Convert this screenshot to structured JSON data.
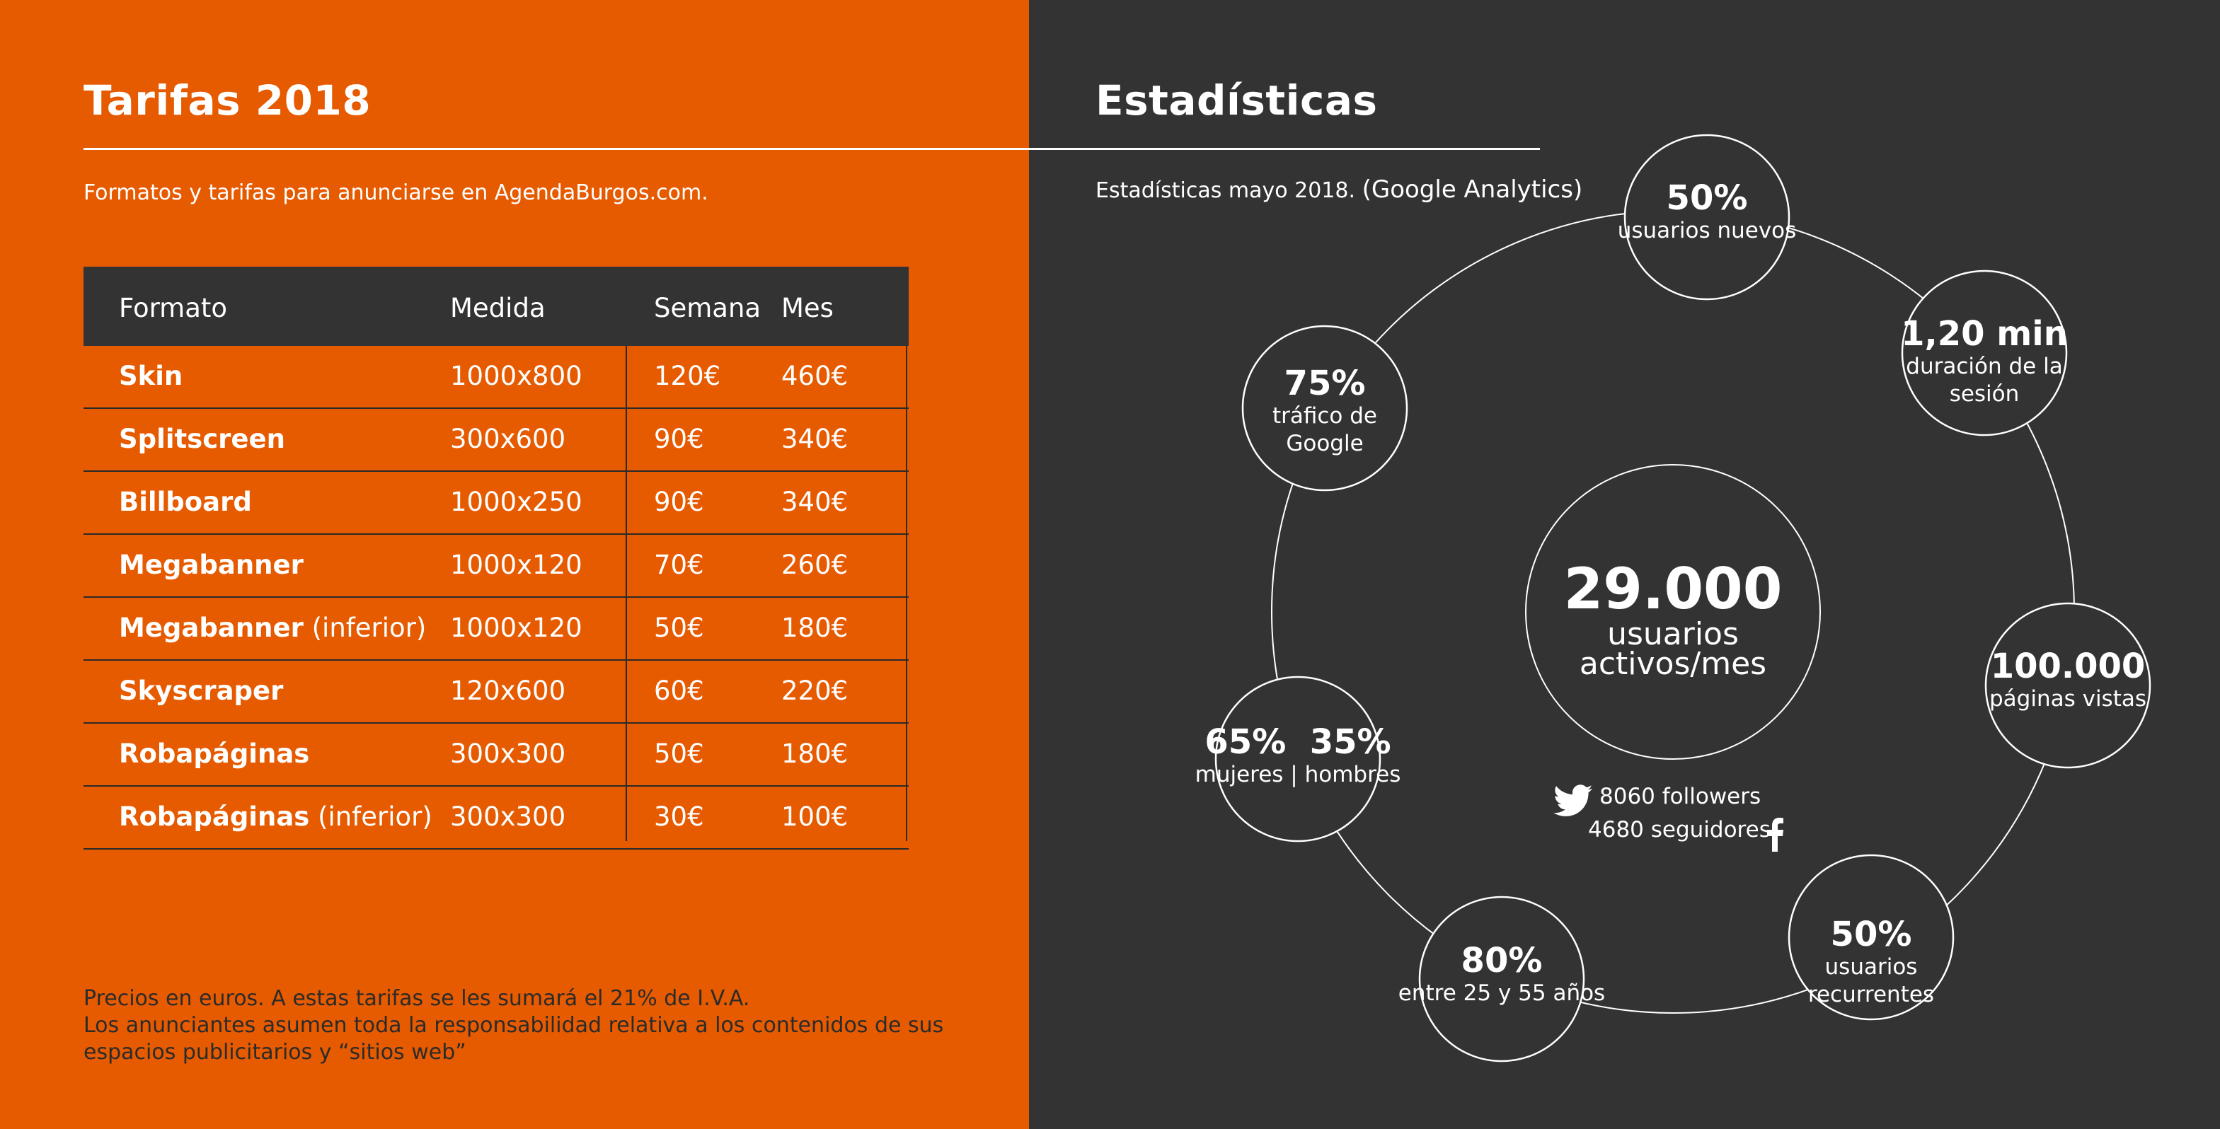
{
  "left": {
    "title": "Tarifas 2018",
    "subtitle": "Formatos y tarifas para anunciarse en AgendaBurgos.com.",
    "table": {
      "headers": [
        "Formato",
        "Medida",
        "Semana",
        "Mes"
      ],
      "rows": [
        {
          "name": "Skin",
          "suffix": "",
          "size": "1000x800",
          "week": "120€",
          "month": "460€"
        },
        {
          "name": "Splitscreen",
          "suffix": "",
          "size": "300x600",
          "week": "90€",
          "month": "340€"
        },
        {
          "name": "Billboard",
          "suffix": "",
          "size": "1000x250",
          "week": "90€",
          "month": "340€"
        },
        {
          "name": "Megabanner",
          "suffix": "",
          "size": "1000x120",
          "week": "70€",
          "month": "260€"
        },
        {
          "name": "Megabanner",
          "suffix": " (inferior)",
          "size": "1000x120",
          "week": "50€",
          "month": "180€"
        },
        {
          "name": "Skyscraper",
          "suffix": "",
          "size": "120x600",
          "week": "60€",
          "month": "220€"
        },
        {
          "name": "Robapáginas",
          "suffix": "",
          "size": "300x300",
          "week": "50€",
          "month": "180€"
        },
        {
          "name": "Robapáginas",
          "suffix": " (inferior)",
          "size": "300x300",
          "week": "30€",
          "month": "100€"
        }
      ]
    },
    "footnote": {
      "line1": "Precios en euros. A estas tarifas se les sumará el 21% de I.V.A.",
      "line2": "Los anunciantes asumen toda la responsabilidad relativa a los contenidos de sus",
      "line3": "espacios publicitarios y “sitios web”"
    }
  },
  "right": {
    "title": "Estadísticas",
    "subtitle_a": "Estadísticas mayo 2018.",
    "subtitle_b": "(Google Analytics)",
    "center": {
      "big": "29.000",
      "line1": "usuarios",
      "line2": "activos/mes"
    },
    "stats": [
      {
        "id": "new-users",
        "big": "50%",
        "line1": "usuarios nuevos",
        "line2": ""
      },
      {
        "id": "session",
        "big": "1,20 min",
        "line1": "duración de la",
        "line2": "sesión"
      },
      {
        "id": "pages",
        "big": "100.000",
        "line1": "páginas vistas",
        "line2": ""
      },
      {
        "id": "recurring",
        "big": "50%",
        "line1": "usuarios",
        "line2": "recurrentes"
      },
      {
        "id": "age",
        "big": "80%",
        "line1": "entre 25 y 55 años",
        "line2": ""
      },
      {
        "id": "gender",
        "big": "65%  35%",
        "line1": "mujeres | hombres",
        "line2": ""
      },
      {
        "id": "google",
        "big": "75%",
        "line1": "tráfico de",
        "line2": "Google"
      }
    ],
    "social": {
      "twitter": "8060 followers",
      "facebook": "4680 seguidores"
    }
  },
  "colors": {
    "orange": "#e65a00",
    "dark": "#333333",
    "line": "#ffffff"
  }
}
